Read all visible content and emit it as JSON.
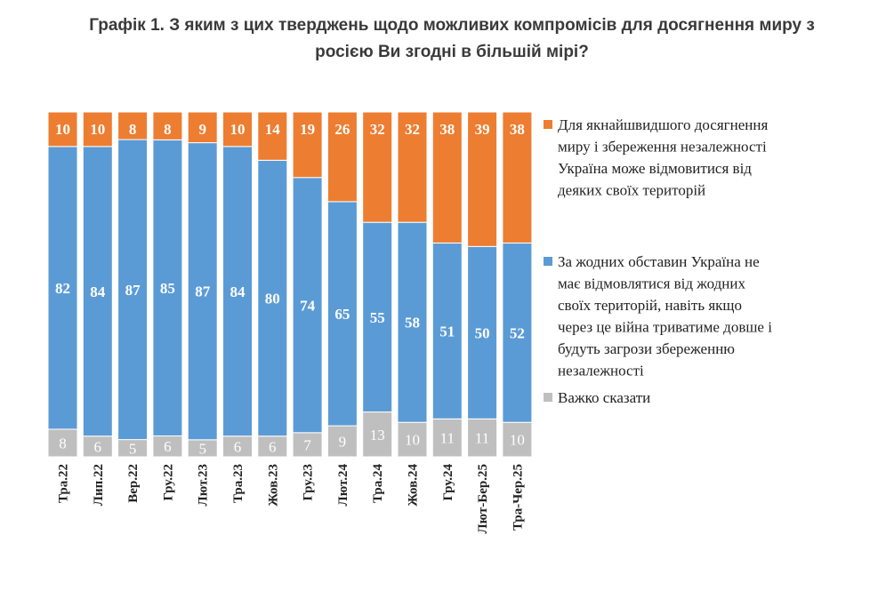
{
  "chart_data": {
    "type": "bar",
    "stacked": true,
    "normalized_percent": true,
    "title_lines": [
      "Графік 1. З яким з цих тверджень щодо можливих компромісів для досягнення миру з",
      "росією Ви згодні в більшій мірі?"
    ],
    "categories": [
      "Тра.22",
      "Лип.22",
      "Вер.22",
      "Гру.22",
      "Лют.23",
      "Тра.23",
      "Жов.23",
      "Гру.23",
      "Лют.24",
      "Тра.24",
      "Жов.24",
      "Гру.24",
      "Лют-Бер.25",
      "Тра-Чер.25"
    ],
    "series": [
      {
        "name": "Важко сказати",
        "color": "#bfbfbf",
        "values": [
          8,
          6,
          5,
          6,
          5,
          6,
          6,
          7,
          9,
          13,
          10,
          11,
          11,
          10
        ]
      },
      {
        "name": "За жодних обставин Україна не має відмовлятися від жодних своїх територій, навіть якщо через це війна триватиме довше і будуть загрози збереженню незалежності",
        "color": "#5b9bd5",
        "values": [
          82,
          84,
          87,
          85,
          87,
          84,
          80,
          74,
          65,
          55,
          58,
          51,
          50,
          52
        ]
      },
      {
        "name": "Для якнайшвидшого досягнення миру і збереження незалежності Україна може відмовитися від деяких своїх територій",
        "color": "#ed7d31",
        "values": [
          10,
          10,
          8,
          8,
          9,
          10,
          14,
          19,
          26,
          32,
          32,
          38,
          39,
          38
        ]
      }
    ],
    "legend": [
      {
        "key": "orange",
        "color": "#ed7d31",
        "lines": [
          "Для якнайшвидшого досягнення",
          "миру і збереження незалежності",
          "Україна може відмовитися від",
          "деяких своїх територій"
        ]
      },
      {
        "key": "blue",
        "color": "#5b9bd5",
        "lines": [
          "За жодних обставин Україна не",
          "має відмовлятися від жодних",
          "своїх територій, навіть якщо",
          "через це війна триватиме довше і",
          "будуть загрози збереженню",
          "незалежності"
        ]
      },
      {
        "key": "gray",
        "color": "#bfbfbf",
        "lines": [
          "Важко сказати"
        ]
      }
    ],
    "legend_position": "right",
    "xlabel": "",
    "ylabel": "",
    "grid": false
  }
}
